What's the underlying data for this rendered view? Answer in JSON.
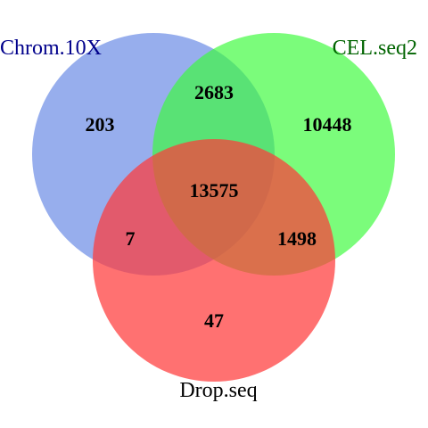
{
  "diagram": {
    "type": "venn",
    "sets": [
      {
        "name": "Chrom.10X",
        "fill": "#6f8fe6",
        "label_color": "#00008b"
      },
      {
        "name": "CEL.seq2",
        "fill": "#3dfb3d",
        "label_color": "#006400"
      },
      {
        "name": "Drop.seq",
        "fill": "#ff3a3a",
        "label_color": "#000000"
      }
    ],
    "regions": {
      "chrom_only": "203",
      "cel_only": "10448",
      "drop_only": "47",
      "chrom_cel": "2683",
      "chrom_drop": "7",
      "cel_drop": "1498",
      "all_three": "13575"
    }
  }
}
